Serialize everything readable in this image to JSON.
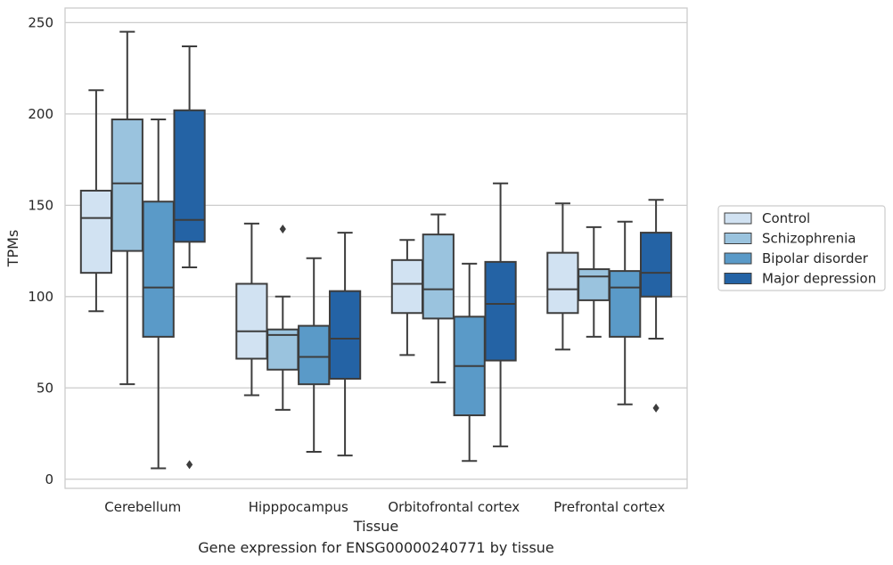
{
  "caption": "Gene expression for ENSG00000240771 by tissue",
  "chart_data": {
    "type": "box",
    "xlabel": "Tissue",
    "ylabel": "TPMs",
    "ylim": [
      -5,
      258
    ],
    "yticks": [
      0,
      50,
      100,
      150,
      200,
      250
    ],
    "grid": "horizontal",
    "legend_position": "outside-right",
    "categories": [
      "Cerebellum",
      "Hipppocampus",
      "Orbitofrontal cortex",
      "Prefrontal cortex"
    ],
    "series": [
      {
        "name": "Control",
        "color": "#d1e2f2",
        "boxes": [
          {
            "whislo": 92,
            "q1": 113,
            "med": 143,
            "q3": 158,
            "whishi": 213,
            "fliers": []
          },
          {
            "whislo": 46,
            "q1": 66,
            "med": 81,
            "q3": 107,
            "whishi": 140,
            "fliers": []
          },
          {
            "whislo": 68,
            "q1": 91,
            "med": 107,
            "q3": 120,
            "whishi": 131,
            "fliers": []
          },
          {
            "whislo": 71,
            "q1": 91,
            "med": 104,
            "q3": 124,
            "whishi": 151,
            "fliers": []
          }
        ]
      },
      {
        "name": "Schizophrenia",
        "color": "#9ac3de",
        "boxes": [
          {
            "whislo": 52,
            "q1": 125,
            "med": 162,
            "q3": 197,
            "whishi": 245,
            "fliers": []
          },
          {
            "whislo": 38,
            "q1": 60,
            "med": 79,
            "q3": 82,
            "whishi": 100,
            "fliers": [
              137
            ]
          },
          {
            "whislo": 53,
            "q1": 88,
            "med": 104,
            "q3": 134,
            "whishi": 145,
            "fliers": []
          },
          {
            "whislo": 78,
            "q1": 98,
            "med": 111,
            "q3": 115,
            "whishi": 138,
            "fliers": []
          }
        ]
      },
      {
        "name": "Bipolar disorder",
        "color": "#5a9ac8",
        "boxes": [
          {
            "whislo": 6,
            "q1": 78,
            "med": 105,
            "q3": 152,
            "whishi": 197,
            "fliers": []
          },
          {
            "whislo": 15,
            "q1": 52,
            "med": 67,
            "q3": 84,
            "whishi": 121,
            "fliers": []
          },
          {
            "whislo": 10,
            "q1": 35,
            "med": 62,
            "q3": 89,
            "whishi": 118,
            "fliers": []
          },
          {
            "whislo": 41,
            "q1": 78,
            "med": 105,
            "q3": 114,
            "whishi": 141,
            "fliers": []
          }
        ]
      },
      {
        "name": "Major depression",
        "color": "#2463a5",
        "boxes": [
          {
            "whislo": 116,
            "q1": 130,
            "med": 142,
            "q3": 202,
            "whishi": 237,
            "fliers": [
              8
            ]
          },
          {
            "whislo": 13,
            "q1": 55,
            "med": 77,
            "q3": 103,
            "whishi": 135,
            "fliers": []
          },
          {
            "whislo": 18,
            "q1": 65,
            "med": 96,
            "q3": 119,
            "whishi": 162,
            "fliers": []
          },
          {
            "whislo": 77,
            "q1": 100,
            "med": 113,
            "q3": 135,
            "whishi": 153,
            "fliers": [
              39
            ]
          }
        ]
      }
    ]
  }
}
